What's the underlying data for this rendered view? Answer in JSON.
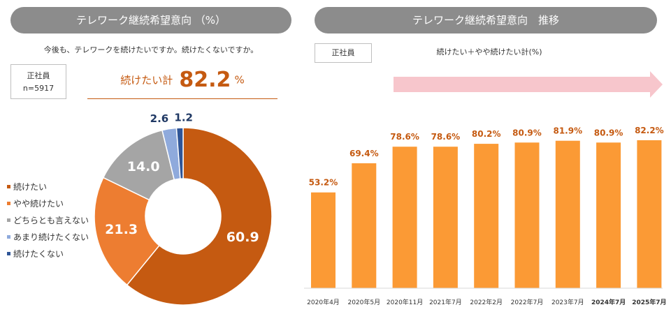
{
  "left": {
    "header": "テレワーク継続希望意向 （%）",
    "question": "今後も、テレワークを続けたいですか。続けたくないですか。",
    "box": {
      "line1": "正社員",
      "line2": "n=5917"
    },
    "total": {
      "label": "続けたい計",
      "value": "82.2",
      "unit": "%"
    }
  },
  "right": {
    "header": "テレワーク継続希望意向　推移",
    "box": "正社員",
    "subtitle": "続けたい＋やや続けたい計(%)"
  },
  "colors": {
    "header_bg": "#8c8c8c",
    "accent": "#c55a11",
    "bar": "#fb9a35",
    "bar_label": "#c55a11",
    "arrow": "#f7c6cc"
  },
  "chart_data": [
    {
      "type": "pie",
      "donut": true,
      "categories": [
        "続けたい",
        "やや続けたい",
        "どちらとも言えない",
        "あまり続けたくない",
        "続けたくない"
      ],
      "values": [
        60.9,
        21.3,
        14.0,
        2.6,
        1.2
      ],
      "labels": [
        "60.9",
        "21.3",
        "14.0",
        "2.6",
        "1.2"
      ],
      "colors": [
        "#c55a11",
        "#ed7d31",
        "#a5a5a5",
        "#8faadc",
        "#2f5597"
      ],
      "legend": "left"
    },
    {
      "type": "bar",
      "categories": [
        "2020年4月",
        "2020年5月",
        "2020年11月",
        "2021年7月",
        "2022年2月",
        "2022年7月",
        "2023年7月",
        "2024年7月",
        "2025年7月"
      ],
      "values": [
        53.2,
        69.4,
        78.6,
        78.6,
        80.2,
        80.9,
        81.9,
        80.9,
        82.2
      ],
      "labels": [
        "53.2%",
        "69.4%",
        "78.6%",
        "78.6%",
        "80.2%",
        "80.9%",
        "81.9%",
        "80.9%",
        "82.2%"
      ],
      "bold_categories": [
        "2024年7月",
        "2025年7月"
      ],
      "ylim": [
        0,
        100
      ]
    }
  ]
}
